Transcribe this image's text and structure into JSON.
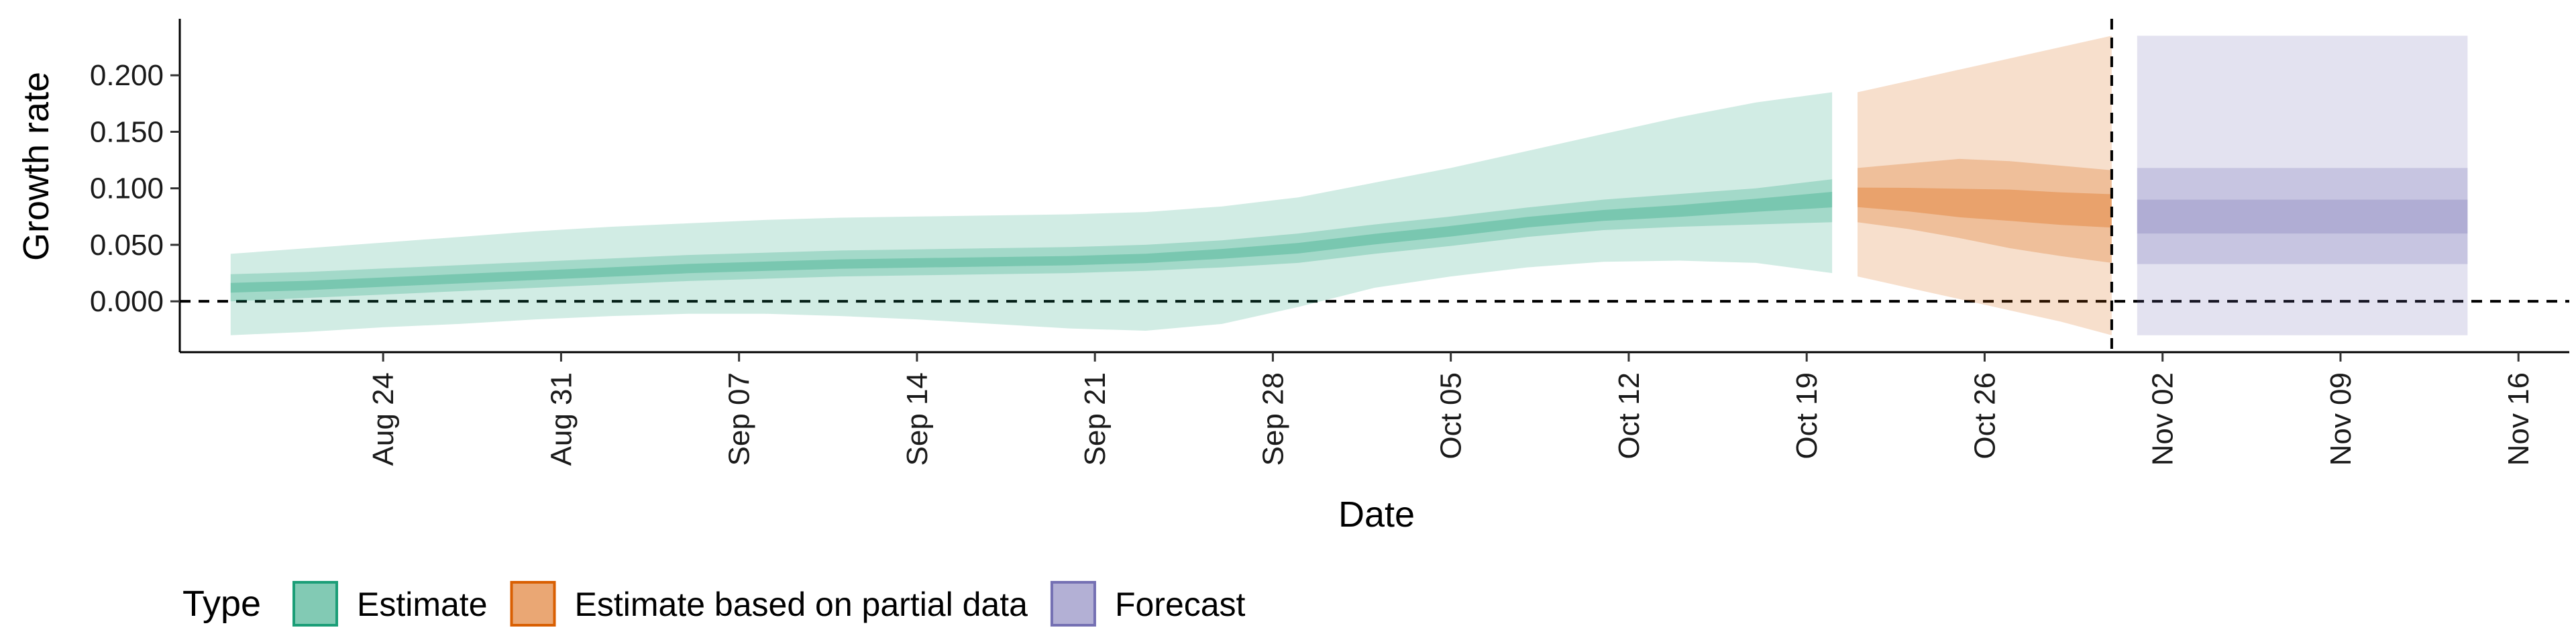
{
  "chart_data": {
    "type": "area",
    "xlabel": "Date",
    "ylabel": "Growth rate",
    "y_ticks": [
      "0.000",
      "0.050",
      "0.100",
      "0.150",
      "0.200"
    ],
    "ylim": [
      -0.045,
      0.25
    ],
    "x_ticks": [
      "Aug 24",
      "Aug 31",
      "Sep 07",
      "Sep 14",
      "Sep 21",
      "Sep 28",
      "Oct 05",
      "Oct 12",
      "Oct 19",
      "Oct 26",
      "Nov 02",
      "Nov 09",
      "Nov 16"
    ],
    "x_tick_dates": [
      "2020-08-24",
      "2020-08-31",
      "2020-09-07",
      "2020-09-14",
      "2020-09-21",
      "2020-09-28",
      "2020-10-05",
      "2020-10-12",
      "2020-10-19",
      "2020-10-26",
      "2020-11-02",
      "2020-11-09",
      "2020-11-16"
    ],
    "xlim": [
      "2020-08-16",
      "2020-11-18"
    ],
    "horizontal_reference_line": 0.0,
    "vertical_reference_line": "2020-10-31",
    "legend": {
      "title": "Type",
      "position": "bottom-left",
      "items": [
        "Estimate",
        "Estimate based on partial data",
        "Forecast"
      ]
    },
    "series": [
      {
        "name": "Estimate",
        "color": "#1b9e77",
        "dates": [
          "2020-08-18",
          "2020-08-21",
          "2020-08-24",
          "2020-08-27",
          "2020-08-30",
          "2020-09-02",
          "2020-09-05",
          "2020-09-08",
          "2020-09-11",
          "2020-09-14",
          "2020-09-17",
          "2020-09-20",
          "2020-09-23",
          "2020-09-26",
          "2020-09-29",
          "2020-10-02",
          "2020-10-05",
          "2020-10-08",
          "2020-10-11",
          "2020-10-14",
          "2020-10-17",
          "2020-10-20"
        ],
        "median": [
          0.012,
          0.014,
          0.017,
          0.02,
          0.023,
          0.026,
          0.029,
          0.031,
          0.033,
          0.034,
          0.035,
          0.036,
          0.038,
          0.042,
          0.047,
          0.055,
          0.062,
          0.07,
          0.076,
          0.08,
          0.085,
          0.09
        ],
        "lower_50": [
          0.0,
          0.003,
          0.006,
          0.009,
          0.012,
          0.015,
          0.018,
          0.02,
          0.022,
          0.023,
          0.024,
          0.025,
          0.027,
          0.03,
          0.034,
          0.042,
          0.049,
          0.057,
          0.063,
          0.066,
          0.068,
          0.07
        ],
        "upper_50": [
          0.024,
          0.026,
          0.029,
          0.032,
          0.035,
          0.038,
          0.041,
          0.043,
          0.045,
          0.046,
          0.047,
          0.048,
          0.05,
          0.054,
          0.06,
          0.068,
          0.075,
          0.083,
          0.09,
          0.095,
          0.1,
          0.108
        ],
        "lower_90": [
          -0.03,
          -0.027,
          -0.023,
          -0.02,
          -0.016,
          -0.013,
          -0.011,
          -0.011,
          -0.013,
          -0.016,
          -0.02,
          -0.024,
          -0.026,
          -0.02,
          -0.005,
          0.012,
          0.022,
          0.03,
          0.035,
          0.036,
          0.034,
          0.025
        ],
        "upper_90": [
          0.042,
          0.047,
          0.052,
          0.057,
          0.062,
          0.066,
          0.069,
          0.072,
          0.074,
          0.075,
          0.076,
          0.077,
          0.079,
          0.084,
          0.092,
          0.105,
          0.118,
          0.133,
          0.148,
          0.163,
          0.176,
          0.185
        ]
      },
      {
        "name": "Estimate based on partial data",
        "color": "#d95f02",
        "dates": [
          "2020-10-21",
          "2020-10-23",
          "2020-10-25",
          "2020-10-27",
          "2020-10-29",
          "2020-10-31"
        ],
        "median": [
          0.092,
          0.09,
          0.087,
          0.085,
          0.082,
          0.08
        ],
        "lower_50": [
          0.07,
          0.064,
          0.056,
          0.047,
          0.04,
          0.034
        ],
        "upper_50": [
          0.118,
          0.122,
          0.126,
          0.124,
          0.12,
          0.116
        ],
        "lower_90": [
          0.022,
          0.012,
          0.002,
          -0.008,
          -0.018,
          -0.03
        ],
        "upper_90": [
          0.185,
          0.195,
          0.205,
          0.215,
          0.225,
          0.235
        ]
      },
      {
        "name": "Forecast",
        "color": "#7570b3",
        "dates": [
          "2020-11-01",
          "2020-11-14"
        ],
        "median": [
          0.075,
          0.075
        ],
        "lower_30": [
          0.06,
          0.06
        ],
        "upper_30": [
          0.09,
          0.09
        ],
        "lower_50": [
          0.033,
          0.033
        ],
        "upper_50": [
          0.118,
          0.118
        ],
        "lower_90": [
          -0.03,
          -0.03
        ],
        "upper_90": [
          0.235,
          0.235
        ]
      }
    ]
  }
}
